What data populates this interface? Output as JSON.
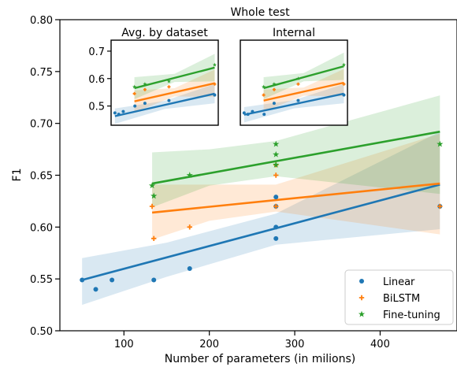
{
  "chart_data": [
    {
      "type": "scatter",
      "title": "Whole test",
      "xlabel": "Number of parameters (in milions)",
      "ylabel": "F1",
      "xlim": [
        25,
        490
      ],
      "ylim": [
        0.5,
        0.8
      ],
      "xticks": [
        100,
        200,
        300,
        400
      ],
      "xtick_labels": [
        "100",
        "200",
        "300",
        "400"
      ],
      "yticks": [
        0.5,
        0.55,
        0.6,
        0.65,
        0.7,
        0.75,
        0.8
      ],
      "ytick_labels": [
        "0.50",
        "0.55",
        "0.60",
        "0.65",
        "0.70",
        "0.75",
        "0.80"
      ],
      "legend": {
        "position": "lower right",
        "entries": [
          "Linear",
          "BiLSTM",
          "Fine-tuning"
        ]
      },
      "series": [
        {
          "name": "Linear",
          "marker": "circle",
          "color": "#1f77b4",
          "points": [
            [
              51,
              0.549
            ],
            [
              67,
              0.54
            ],
            [
              86,
              0.549
            ],
            [
              135,
              0.549
            ],
            [
              177,
              0.56
            ],
            [
              278,
              0.589
            ],
            [
              278,
              0.6
            ],
            [
              278,
              0.62
            ],
            [
              278,
              0.629
            ],
            [
              470,
              0.62
            ]
          ],
          "fit": [
            [
              51,
              0.549
            ],
            [
              470,
              0.641
            ]
          ],
          "band": [
            [
              51,
              0.525,
              0.57
            ],
            [
              150,
              0.552,
              0.585
            ],
            [
              278,
              0.583,
              0.613
            ],
            [
              470,
              0.598,
              0.692
            ]
          ]
        },
        {
          "name": "BiLSTM",
          "marker": "plus",
          "color": "#ff7f0e",
          "points": [
            [
              133,
              0.62
            ],
            [
              135,
              0.589
            ],
            [
              177,
              0.6
            ],
            [
              278,
              0.62
            ],
            [
              278,
              0.65
            ],
            [
              278,
              0.66
            ],
            [
              470,
              0.62
            ]
          ],
          "fit": [
            [
              133,
              0.614
            ],
            [
              470,
              0.642
            ]
          ],
          "band": [
            [
              133,
              0.588,
              0.641
            ],
            [
              200,
              0.606,
              0.641
            ],
            [
              278,
              0.615,
              0.641
            ],
            [
              470,
              0.593,
              0.69
            ]
          ]
        },
        {
          "name": "Fine-tuning",
          "marker": "star",
          "color": "#2ca02c",
          "points": [
            [
              133,
              0.64
            ],
            [
              135,
              0.63
            ],
            [
              177,
              0.65
            ],
            [
              278,
              0.66
            ],
            [
              278,
              0.67
            ],
            [
              278,
              0.68
            ],
            [
              470,
              0.68
            ]
          ],
          "fit": [
            [
              133,
              0.642
            ],
            [
              470,
              0.692
            ]
          ],
          "band": [
            [
              133,
              0.619,
              0.672
            ],
            [
              200,
              0.64,
              0.675
            ],
            [
              278,
              0.649,
              0.683
            ],
            [
              470,
              0.632,
              0.727
            ]
          ]
        }
      ]
    },
    {
      "type": "scatter",
      "title": "Avg. by dataset",
      "ylim": [
        0.43,
        0.74
      ],
      "yticks": [
        0.5,
        0.6,
        0.7
      ],
      "ytick_labels": [
        "0.5",
        "0.6",
        "0.7"
      ],
      "series": [
        {
          "name": "Linear",
          "color": "#1f77b4",
          "points": [
            [
              51,
              0.475
            ],
            [
              67,
              0.47
            ],
            [
              86,
              0.48
            ],
            [
              135,
              0.5
            ],
            [
              177,
              0.51
            ],
            [
              278,
              0.52
            ],
            [
              470,
              0.54
            ]
          ],
          "fit": [
            [
              51,
              0.463
            ],
            [
              470,
              0.545
            ]
          ]
        },
        {
          "name": "BiLSTM",
          "color": "#ff7f0e",
          "points": [
            [
              133,
              0.545
            ],
            [
              177,
              0.56
            ],
            [
              278,
              0.57
            ],
            [
              470,
              0.58
            ]
          ],
          "fit": [
            [
              133,
              0.517
            ],
            [
              470,
              0.583
            ]
          ]
        },
        {
          "name": "Fine-tuning",
          "color": "#2ca02c",
          "points": [
            [
              133,
              0.57
            ],
            [
              177,
              0.58
            ],
            [
              278,
              0.59
            ],
            [
              470,
              0.65
            ]
          ],
          "fit": [
            [
              133,
              0.565
            ],
            [
              470,
              0.64
            ]
          ]
        }
      ]
    },
    {
      "type": "scatter",
      "title": "Internal",
      "ylim": [
        0.43,
        0.74
      ],
      "series": [
        {
          "name": "Linear",
          "color": "#1f77b4",
          "points": [
            [
              51,
              0.475
            ],
            [
              67,
              0.47
            ],
            [
              86,
              0.48
            ],
            [
              135,
              0.47
            ],
            [
              177,
              0.51
            ],
            [
              278,
              0.52
            ],
            [
              470,
              0.54
            ]
          ],
          "fit": [
            [
              51,
              0.468
            ],
            [
              470,
              0.545
            ]
          ]
        },
        {
          "name": "BiLSTM",
          "color": "#ff7f0e",
          "points": [
            [
              133,
              0.54
            ],
            [
              177,
              0.56
            ],
            [
              278,
              0.58
            ],
            [
              470,
              0.58
            ]
          ],
          "fit": [
            [
              133,
              0.52
            ],
            [
              470,
              0.585
            ]
          ]
        },
        {
          "name": "Fine-tuning",
          "color": "#2ca02c",
          "points": [
            [
              133,
              0.57
            ],
            [
              177,
              0.58
            ],
            [
              278,
              0.6
            ],
            [
              470,
              0.65
            ]
          ],
          "fit": [
            [
              133,
              0.565
            ],
            [
              470,
              0.645
            ]
          ]
        }
      ]
    }
  ]
}
